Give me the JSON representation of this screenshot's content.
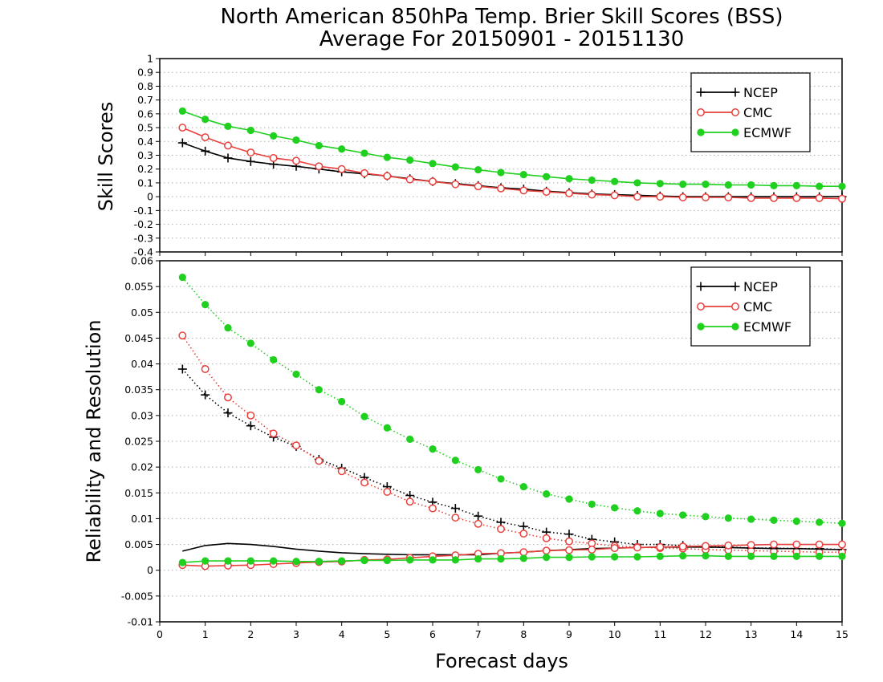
{
  "figure": {
    "title_line1": "North American 850hPa Temp. Brier Skill Scores (BSS)",
    "title_line2": "Average For 20150901 - 20151130",
    "xlabel": "Forecast days"
  },
  "colors": {
    "NCEP": "#000000",
    "CMC": "#e8403c",
    "ECMWF": "#1fd01f",
    "grid": "#b0b0b0"
  },
  "chart_data": [
    {
      "type": "line",
      "ylabel": "Skill Scores",
      "xlim": [
        0,
        15
      ],
      "ylim": [
        -0.4,
        1
      ],
      "x_ticks": [
        0,
        1,
        2,
        3,
        4,
        5,
        6,
        7,
        8,
        9,
        10,
        11,
        12,
        13,
        14,
        15
      ],
      "y_ticks": [
        -0.4,
        -0.3,
        -0.2,
        -0.1,
        0,
        0.1,
        0.2,
        0.3,
        0.4,
        0.5,
        0.6,
        0.7,
        0.8,
        0.9,
        1
      ],
      "y_tick_labels": [
        "-0.4",
        "-0.3",
        "-0.2",
        "-0.1",
        "0",
        "0.1",
        "0.2",
        "0.3",
        "0.4",
        "0.5",
        "0.6",
        "0.7",
        "0.8",
        "0.9",
        "1"
      ],
      "grid": "horizontal dotted",
      "legend_position": "top-right",
      "legend": [
        "NCEP",
        "CMC",
        "ECMWF"
      ],
      "x": [
        0.5,
        1,
        1.5,
        2,
        2.5,
        3,
        3.5,
        4,
        4.5,
        5,
        5.5,
        6,
        6.5,
        7,
        7.5,
        8,
        8.5,
        9,
        9.5,
        10,
        10.5,
        11,
        11.5,
        12,
        12.5,
        13,
        13.5,
        14,
        14.5,
        15
      ],
      "series": [
        {
          "name": "NCEP",
          "marker": "plus",
          "style": "solid",
          "values": [
            0.39,
            0.33,
            0.28,
            0.255,
            0.235,
            0.22,
            0.2,
            0.18,
            0.165,
            0.15,
            0.13,
            0.11,
            0.095,
            0.08,
            0.065,
            0.055,
            0.04,
            0.03,
            0.02,
            0.015,
            0.01,
            0.005,
            0.0,
            0.0,
            0.0,
            0.0,
            0.0,
            0.0,
            0.0,
            0.0
          ]
        },
        {
          "name": "CMC",
          "marker": "open-circle",
          "style": "solid",
          "values": [
            0.5,
            0.43,
            0.37,
            0.32,
            0.28,
            0.26,
            0.22,
            0.2,
            0.17,
            0.15,
            0.125,
            0.11,
            0.09,
            0.075,
            0.06,
            0.045,
            0.035,
            0.025,
            0.015,
            0.01,
            0.0,
            0.0,
            -0.005,
            -0.005,
            -0.005,
            -0.01,
            -0.01,
            -0.01,
            -0.01,
            -0.015
          ]
        },
        {
          "name": "ECMWF",
          "marker": "filled-circle",
          "style": "solid",
          "values": [
            0.62,
            0.56,
            0.51,
            0.48,
            0.44,
            0.41,
            0.37,
            0.345,
            0.315,
            0.285,
            0.265,
            0.24,
            0.215,
            0.195,
            0.175,
            0.16,
            0.145,
            0.13,
            0.12,
            0.11,
            0.1,
            0.095,
            0.09,
            0.09,
            0.085,
            0.085,
            0.08,
            0.08,
            0.075,
            0.075
          ]
        }
      ]
    },
    {
      "type": "line",
      "ylabel": "Reliability and Resolution",
      "xlim": [
        0,
        15
      ],
      "ylim": [
        -0.01,
        0.06
      ],
      "x_ticks": [
        0,
        1,
        2,
        3,
        4,
        5,
        6,
        7,
        8,
        9,
        10,
        11,
        12,
        13,
        14,
        15
      ],
      "x_tick_labels": [
        "0",
        "1",
        "2",
        "3",
        "4",
        "5",
        "6",
        "7",
        "8",
        "9",
        "10",
        "11",
        "12",
        "13",
        "14",
        "15"
      ],
      "y_ticks": [
        -0.01,
        -0.005,
        0,
        0.005,
        0.01,
        0.015,
        0.02,
        0.025,
        0.03,
        0.035,
        0.04,
        0.045,
        0.05,
        0.055,
        0.06
      ],
      "y_tick_labels": [
        "-0.01",
        "-0.005",
        "0",
        "0.005",
        "0.01",
        "0.015",
        "0.02",
        "0.025",
        "0.03",
        "0.035",
        "0.04",
        "0.045",
        "0.05",
        "0.055",
        "0.06"
      ],
      "grid": "horizontal dotted",
      "legend_position": "top-right",
      "legend": [
        "NCEP",
        "CMC",
        "ECMWF"
      ],
      "x": [
        0.5,
        1,
        1.5,
        2,
        2.5,
        3,
        3.5,
        4,
        4.5,
        5,
        5.5,
        6,
        6.5,
        7,
        7.5,
        8,
        8.5,
        9,
        9.5,
        10,
        10.5,
        11,
        11.5,
        12,
        12.5,
        13,
        13.5,
        14,
        14.5,
        15
      ],
      "series": [
        {
          "name": "NCEP",
          "marker": "plus",
          "style": "dotted",
          "values": [
            0.039,
            0.034,
            0.0305,
            0.028,
            0.0258,
            0.024,
            0.0215,
            0.0198,
            0.018,
            0.0162,
            0.0145,
            0.0132,
            0.012,
            0.0105,
            0.0093,
            0.0085,
            0.0074,
            0.007,
            0.006,
            0.0055,
            0.005,
            0.005,
            0.0048,
            0.0045,
            0.0045,
            0.0043,
            0.0043,
            0.0042,
            0.0042,
            0.004
          ]
        },
        {
          "name": "CMC",
          "marker": "open-circle",
          "style": "dotted",
          "values": [
            0.0455,
            0.039,
            0.0335,
            0.03,
            0.0265,
            0.0242,
            0.0212,
            0.0192,
            0.017,
            0.0152,
            0.0133,
            0.012,
            0.0102,
            0.009,
            0.008,
            0.0071,
            0.0062,
            0.0056,
            0.0052,
            0.0047,
            0.0045,
            0.0043,
            0.0042,
            0.004,
            0.0039,
            0.0038,
            0.0037,
            0.0036,
            0.0035,
            0.0035
          ]
        },
        {
          "name": "ECMWF",
          "marker": "filled-circle",
          "style": "dotted",
          "values": [
            0.0568,
            0.0515,
            0.047,
            0.044,
            0.0408,
            0.038,
            0.035,
            0.0327,
            0.0298,
            0.0276,
            0.0254,
            0.0235,
            0.0213,
            0.0195,
            0.0177,
            0.0162,
            0.0148,
            0.0138,
            0.0128,
            0.0121,
            0.0115,
            0.011,
            0.0107,
            0.0104,
            0.0101,
            0.0099,
            0.0097,
            0.0095,
            0.0093,
            0.0091
          ]
        },
        {
          "name": "NCEP",
          "marker": "none",
          "style": "solid",
          "values": [
            0.0037,
            0.0048,
            0.0052,
            0.005,
            0.0046,
            0.0041,
            0.0037,
            0.0034,
            0.0032,
            0.0031,
            0.003,
            0.003,
            0.003,
            0.003,
            0.0033,
            0.0035,
            0.0038,
            0.004,
            0.0042,
            0.0043,
            0.0044,
            0.0045,
            0.0045,
            0.0045,
            0.0044,
            0.0043,
            0.0042,
            0.0042,
            0.0041,
            0.004
          ]
        },
        {
          "name": "CMC",
          "marker": "open-circle",
          "style": "solid",
          "values": [
            0.001,
            0.0008,
            0.0009,
            0.001,
            0.0012,
            0.0014,
            0.0016,
            0.0017,
            0.002,
            0.0021,
            0.0024,
            0.0027,
            0.0029,
            0.0032,
            0.0033,
            0.0035,
            0.0038,
            0.0039,
            0.004,
            0.0043,
            0.0044,
            0.0045,
            0.0046,
            0.0047,
            0.0048,
            0.0049,
            0.005,
            0.005,
            0.005,
            0.005
          ]
        },
        {
          "name": "ECMWF",
          "marker": "filled-circle",
          "style": "solid",
          "values": [
            0.0015,
            0.0018,
            0.0018,
            0.0018,
            0.0018,
            0.0017,
            0.0017,
            0.0018,
            0.0019,
            0.0019,
            0.002,
            0.002,
            0.002,
            0.0022,
            0.0022,
            0.0023,
            0.0025,
            0.0025,
            0.0026,
            0.0026,
            0.0026,
            0.0027,
            0.0028,
            0.0028,
            0.0027,
            0.0027,
            0.0027,
            0.0027,
            0.0027,
            0.0027
          ]
        }
      ]
    }
  ]
}
